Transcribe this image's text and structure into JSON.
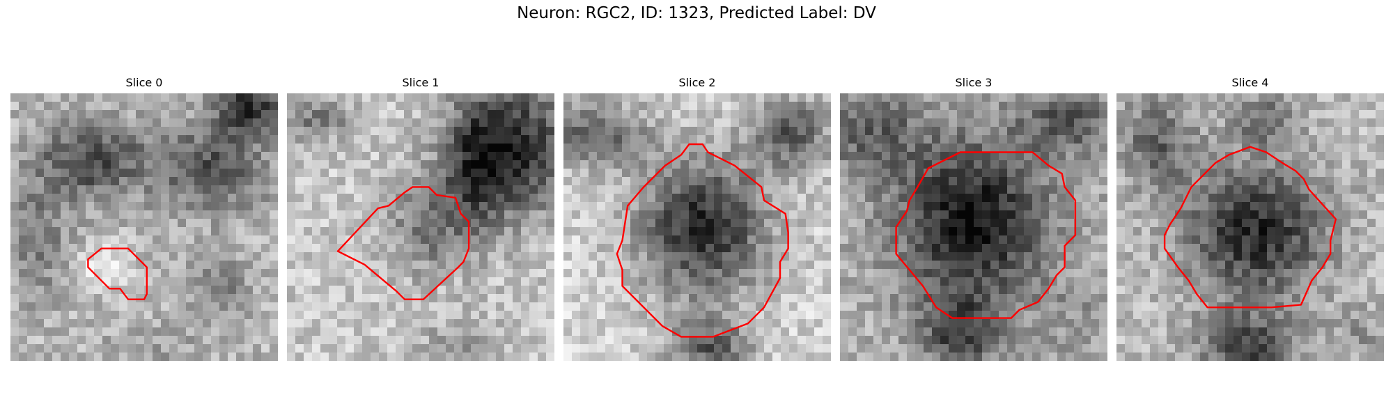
{
  "figure": {
    "title": "Neuron: RGC2, ID: 1323, Predicted Label: DV"
  },
  "contour_color": "#ff0000",
  "panels": [
    {
      "title": "Slice 0"
    },
    {
      "title": "Slice 1"
    },
    {
      "title": "Slice 2"
    },
    {
      "title": "Slice 3"
    },
    {
      "title": "Slice 4"
    }
  ]
}
